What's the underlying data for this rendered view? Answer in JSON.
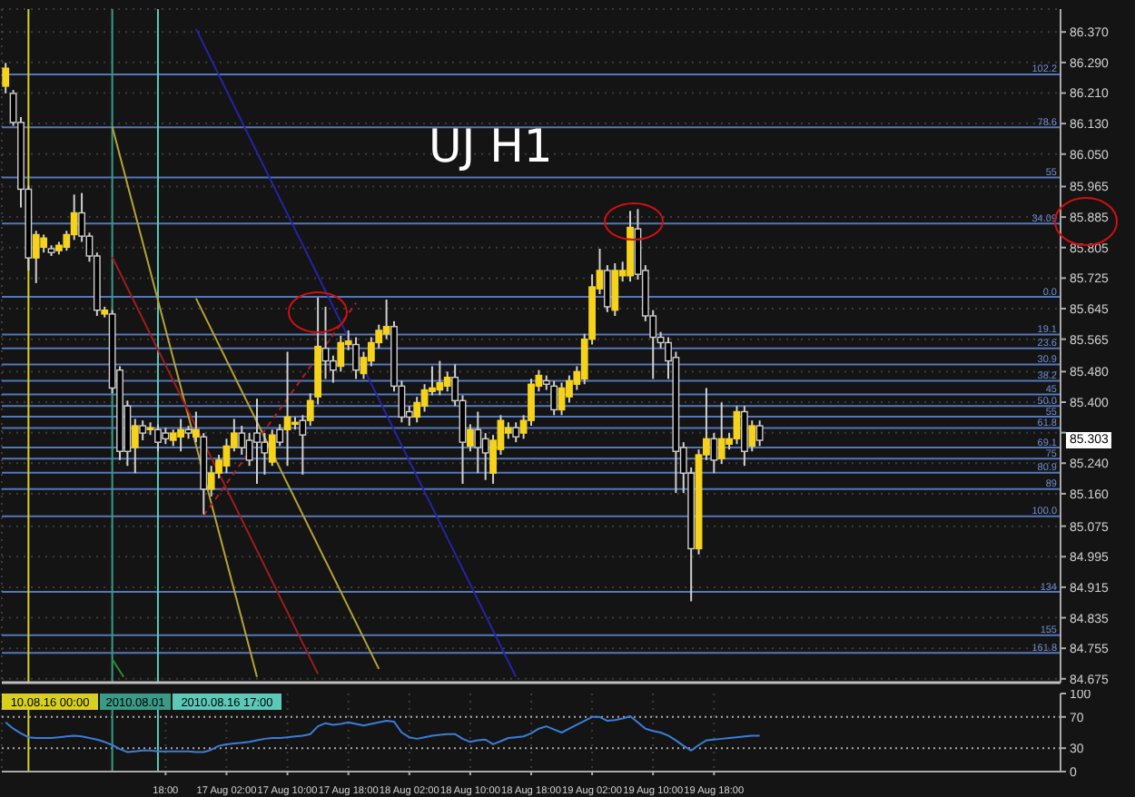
{
  "chart_data": [
    {
      "type": "candlestick",
      "title": "UJ H1",
      "x": [
        "2010-08-15T21:00",
        "2010-08-15T22:00",
        "2010-08-15T23:00",
        "2010-08-16T00:00",
        "2010-08-16T01:00",
        "2010-08-16T02:00",
        "2010-08-16T03:00",
        "2010-08-16T04:00",
        "2010-08-16T05:00",
        "2010-08-16T06:00",
        "2010-08-16T07:00",
        "2010-08-16T08:00",
        "2010-08-16T09:00",
        "2010-08-16T10:00",
        "2010-08-16T11:00",
        "2010-08-16T12:00",
        "2010-08-16T13:00",
        "2010-08-16T14:00",
        "2010-08-16T15:00",
        "2010-08-16T16:00",
        "2010-08-16T17:00",
        "2010-08-16T18:00",
        "2010-08-16T19:00",
        "2010-08-16T20:00",
        "2010-08-16T21:00",
        "2010-08-16T22:00",
        "2010-08-16T23:00",
        "2010-08-17T00:00",
        "2010-08-17T01:00",
        "2010-08-17T02:00",
        "2010-08-17T03:00",
        "2010-08-17T04:00",
        "2010-08-17T05:00",
        "2010-08-17T06:00",
        "2010-08-17T07:00",
        "2010-08-17T08:00",
        "2010-08-17T09:00",
        "2010-08-17T10:00",
        "2010-08-17T11:00",
        "2010-08-17T12:00",
        "2010-08-17T13:00",
        "2010-08-17T14:00",
        "2010-08-17T15:00",
        "2010-08-17T16:00",
        "2010-08-17T17:00",
        "2010-08-17T18:00",
        "2010-08-17T19:00",
        "2010-08-17T20:00",
        "2010-08-17T21:00",
        "2010-08-17T22:00",
        "2010-08-17T23:00",
        "2010-08-18T00:00",
        "2010-08-18T01:00",
        "2010-08-18T02:00",
        "2010-08-18T03:00",
        "2010-08-18T04:00",
        "2010-08-18T05:00",
        "2010-08-18T06:00",
        "2010-08-18T07:00",
        "2010-08-18T08:00",
        "2010-08-18T09:00",
        "2010-08-18T10:00",
        "2010-08-18T11:00",
        "2010-08-18T12:00",
        "2010-08-18T13:00",
        "2010-08-18T14:00",
        "2010-08-18T15:00",
        "2010-08-18T16:00",
        "2010-08-18T17:00",
        "2010-08-18T18:00",
        "2010-08-18T19:00",
        "2010-08-18T20:00",
        "2010-08-18T21:00",
        "2010-08-18T22:00",
        "2010-08-18T23:00",
        "2010-08-19T00:00",
        "2010-08-19T01:00",
        "2010-08-19T02:00",
        "2010-08-19T03:00",
        "2010-08-19T04:00",
        "2010-08-19T05:00",
        "2010-08-19T06:00",
        "2010-08-19T07:00",
        "2010-08-19T08:00",
        "2010-08-19T09:00",
        "2010-08-19T10:00",
        "2010-08-19T11:00",
        "2010-08-19T12:00",
        "2010-08-19T13:00",
        "2010-08-19T14:00",
        "2010-08-19T15:00",
        "2010-08-19T16:00",
        "2010-08-19T17:00",
        "2010-08-19T18:00",
        "2010-08-19T19:00",
        "2010-08-19T20:00",
        "2010-08-19T21:00",
        "2010-08-19T22:00",
        "2010-08-19T23:00",
        "2010-08-20T00:00"
      ],
      "ohlc": [
        [
          86.228,
          86.289,
          86.209,
          86.275
        ],
        [
          86.209,
          86.218,
          86.124,
          86.133
        ],
        [
          86.133,
          86.147,
          85.91,
          85.958
        ],
        [
          85.958,
          85.967,
          85.745,
          85.778
        ],
        [
          85.778,
          85.849,
          85.712,
          85.839
        ],
        [
          85.806,
          85.839,
          85.792,
          85.83
        ],
        [
          85.802,
          85.811,
          85.783,
          85.792
        ],
        [
          85.797,
          85.82,
          85.787,
          85.811
        ],
        [
          85.806,
          85.849,
          85.797,
          85.839
        ],
        [
          85.839,
          85.944,
          85.825,
          85.896
        ],
        [
          85.896,
          85.948,
          85.82,
          85.835
        ],
        [
          85.835,
          85.844,
          85.768,
          85.783
        ],
        [
          85.783,
          85.792,
          85.626,
          85.641
        ],
        [
          85.631,
          85.65,
          85.622,
          85.641
        ],
        [
          85.631,
          85.641,
          85.423,
          85.437
        ],
        [
          85.484,
          85.494,
          85.248,
          85.271
        ],
        [
          85.39,
          85.404,
          85.233,
          85.271
        ],
        [
          85.281,
          85.356,
          85.214,
          85.338
        ],
        [
          85.338,
          85.352,
          85.3,
          85.319
        ],
        [
          85.328,
          85.347,
          85.314,
          85.333
        ],
        [
          85.328,
          85.342,
          85.271,
          85.295
        ],
        [
          85.319,
          85.333,
          85.29,
          85.304
        ],
        [
          85.3,
          85.328,
          85.285,
          85.319
        ],
        [
          85.309,
          85.356,
          85.271,
          85.328
        ],
        [
          85.328,
          85.338,
          85.304,
          85.319
        ],
        [
          85.309,
          85.375,
          85.295,
          85.328
        ],
        [
          85.309,
          85.319,
          85.106,
          85.172
        ],
        [
          85.172,
          85.233,
          85.153,
          85.214
        ],
        [
          85.214,
          85.262,
          85.2,
          85.248
        ],
        [
          85.233,
          85.304,
          85.214,
          85.285
        ],
        [
          85.281,
          85.356,
          85.271,
          85.319
        ],
        [
          85.319,
          85.338,
          85.262,
          85.281
        ],
        [
          85.3,
          85.319,
          85.233,
          85.248
        ],
        [
          85.319,
          85.409,
          85.186,
          85.295
        ],
        [
          85.295,
          85.319,
          85.21,
          85.267
        ],
        [
          85.243,
          85.328,
          85.233,
          85.314
        ],
        [
          85.328,
          85.342,
          85.285,
          85.295
        ],
        [
          85.328,
          85.532,
          85.233,
          85.361
        ],
        [
          85.342,
          85.361,
          85.328,
          85.347
        ],
        [
          85.352,
          85.366,
          85.21,
          85.314
        ],
        [
          85.352,
          85.423,
          85.338,
          85.404
        ],
        [
          85.414,
          85.674,
          85.394,
          85.546
        ],
        [
          85.541,
          85.65,
          85.461,
          85.508
        ],
        [
          85.508,
          85.522,
          85.451,
          85.484
        ],
        [
          85.494,
          85.574,
          85.48,
          85.556
        ],
        [
          85.551,
          85.588,
          85.536,
          85.56
        ],
        [
          85.551,
          85.57,
          85.461,
          85.484
        ],
        [
          85.475,
          85.532,
          85.461,
          85.517
        ],
        [
          85.508,
          85.57,
          85.494,
          85.556
        ],
        [
          85.556,
          85.603,
          85.541,
          85.588
        ],
        [
          85.579,
          85.669,
          85.565,
          85.598
        ],
        [
          85.598,
          85.612,
          85.428,
          85.442
        ],
        [
          85.442,
          85.456,
          85.347,
          85.361
        ],
        [
          85.375,
          85.39,
          85.338,
          85.361
        ],
        [
          85.361,
          85.414,
          85.347,
          85.399
        ],
        [
          85.39,
          85.447,
          85.375,
          85.432
        ],
        [
          85.428,
          85.494,
          85.418,
          85.437
        ],
        [
          85.432,
          85.508,
          85.418,
          85.451
        ],
        [
          85.442,
          85.48,
          85.428,
          85.465
        ],
        [
          85.465,
          85.499,
          85.39,
          85.404
        ],
        [
          85.404,
          85.418,
          85.186,
          85.295
        ],
        [
          85.285,
          85.342,
          85.271,
          85.328
        ],
        [
          85.328,
          85.375,
          85.214,
          85.281
        ],
        [
          85.304,
          85.319,
          85.196,
          85.267
        ],
        [
          85.214,
          85.314,
          85.186,
          85.3
        ],
        [
          85.276,
          85.366,
          85.262,
          85.352
        ],
        [
          85.319,
          85.347,
          85.304,
          85.333
        ],
        [
          85.333,
          85.347,
          85.295,
          85.309
        ],
        [
          85.319,
          85.366,
          85.304,
          85.352
        ],
        [
          85.352,
          85.461,
          85.338,
          85.447
        ],
        [
          85.442,
          85.484,
          85.428,
          85.47
        ],
        [
          85.456,
          85.47,
          85.432,
          85.447
        ],
        [
          85.442,
          85.456,
          85.366,
          85.38
        ],
        [
          85.38,
          85.451,
          85.366,
          85.437
        ],
        [
          85.414,
          85.47,
          85.399,
          85.456
        ],
        [
          85.447,
          85.494,
          85.432,
          85.48
        ],
        [
          85.461,
          85.579,
          85.447,
          85.565
        ],
        [
          85.565,
          85.735,
          85.551,
          85.702
        ],
        [
          85.697,
          85.802,
          85.683,
          85.745
        ],
        [
          85.745,
          85.759,
          85.636,
          85.65
        ],
        [
          85.641,
          85.764,
          85.626,
          85.745
        ],
        [
          85.731,
          85.768,
          85.716,
          85.745
        ],
        [
          85.731,
          85.901,
          85.716,
          85.858
        ],
        [
          85.854,
          85.906,
          85.721,
          85.735
        ],
        [
          85.745,
          85.759,
          85.612,
          85.626
        ],
        [
          85.626,
          85.641,
          85.461,
          85.57
        ],
        [
          85.57,
          85.584,
          85.541,
          85.556
        ],
        [
          85.556,
          85.57,
          85.461,
          85.508
        ],
        [
          85.517,
          85.532,
          85.162,
          85.271
        ],
        [
          85.281,
          85.295,
          85.162,
          85.214
        ],
        [
          85.214,
          85.229,
          84.878,
          85.016
        ],
        [
          85.016,
          85.276,
          85.001,
          85.262
        ],
        [
          85.262,
          85.437,
          85.248,
          85.304
        ],
        [
          85.304,
          85.319,
          85.214,
          85.248
        ],
        [
          85.252,
          85.399,
          85.238,
          85.304
        ],
        [
          85.29,
          85.319,
          85.276,
          85.304
        ],
        [
          85.304,
          85.39,
          85.29,
          85.375
        ],
        [
          85.375,
          85.39,
          85.233,
          85.271
        ],
        [
          85.285,
          85.352,
          85.271,
          85.338
        ],
        [
          85.338,
          85.352,
          85.285,
          85.3
        ]
      ],
      "colors": [
        "#f5d31c",
        "#000000",
        "#000000",
        "#000000",
        "#f5d31c",
        "#f5d31c",
        "#000000",
        "#f5d31c",
        "#f5d31c",
        "#f5d31c",
        "#000000",
        "#000000",
        "#000000",
        "#f5d31c",
        "#000000",
        "#000000",
        "#000000",
        "#f5d31c",
        "#000000",
        "#f5d31c",
        "#000000",
        "#000000",
        "#f5d31c",
        "#f5d31c",
        "#000000",
        "#f5d31c",
        "#000000",
        "#f5d31c",
        "#f5d31c",
        "#f5d31c",
        "#f5d31c",
        "#000000",
        "#000000",
        "#000000",
        "#000000",
        "#f5d31c",
        "#000000",
        "#f5d31c",
        "#f5d31c",
        "#000000",
        "#f5d31c",
        "#f5d31c",
        "#000000",
        "#000000",
        "#f5d31c",
        "#f5d31c",
        "#000000",
        "#f5d31c",
        "#f5d31c",
        "#f5d31c",
        "#f5d31c",
        "#000000",
        "#000000",
        "#000000",
        "#f5d31c",
        "#f5d31c",
        "#f5d31c",
        "#f5d31c",
        "#f5d31c",
        "#000000",
        "#000000",
        "#f5d31c",
        "#000000",
        "#000000",
        "#f5d31c",
        "#f5d31c",
        "#f5d31c",
        "#000000",
        "#f5d31c",
        "#f5d31c",
        "#f5d31c",
        "#000000",
        "#000000",
        "#f5d31c",
        "#f5d31c",
        "#f5d31c",
        "#f5d31c",
        "#f5d31c",
        "#f5d31c",
        "#000000",
        "#f5d31c",
        "#f5d31c",
        "#f5d31c",
        "#000000",
        "#000000",
        "#000000",
        "#000000",
        "#000000",
        "#000000",
        "#000000",
        "#000000",
        "#f5d31c",
        "#f5d31c",
        "#000000",
        "#f5d31c",
        "#f5d31c",
        "#f5d31c",
        "#000000",
        "#f5d31c",
        "#000000"
      ],
      "series": [
        {
          "type": "line",
          "color": "#2424a8",
          "x": [
            "2010-08-16T22:00",
            "2010-08-18T16:00"
          ],
          "values": [
            86.378,
            84.68
          ]
        },
        {
          "type": "line",
          "color": "#b5a334",
          "x": [
            "2010-08-16T11:00",
            "2010-08-17T06:00"
          ],
          "values": [
            86.122,
            84.68
          ]
        },
        {
          "type": "line",
          "color": "#b5a334",
          "x": [
            "2010-08-16T22:00",
            "2010-08-17T22:00"
          ],
          "values": [
            85.672,
            84.701
          ]
        },
        {
          "type": "line",
          "color": "#a01c1c",
          "x": [
            "2010-08-16T11:00",
            "2010-08-17T14:00"
          ],
          "values": [
            85.78,
            84.688
          ]
        },
        {
          "type": "line",
          "color": "#b02020",
          "line_style": "dashed",
          "x": [
            "2010-08-16T23:00",
            "2010-08-17T19:00"
          ],
          "values": [
            85.103,
            85.66
          ]
        },
        {
          "type": "line",
          "color": "#2e8b2e",
          "x": [
            "2010-08-16T11:00",
            "2010-08-16T12:30"
          ],
          "values": [
            84.726,
            84.68
          ]
        }
      ],
      "xlim": [
        "2010-08-15T20:30",
        "2010-08-21T15:30"
      ],
      "xticks": [
        {
          "value": "2010-08-16T18:00",
          "label": null
        },
        {
          "value": "2010-08-17T02:00",
          "label": null
        },
        {
          "value": "2010-08-17T10:00",
          "label": null
        },
        {
          "value": "2010-08-17T18:00",
          "label": null
        },
        {
          "value": "2010-08-18T02:00",
          "label": null
        },
        {
          "value": "2010-08-18T10:00",
          "label": null
        },
        {
          "value": "2010-08-18T18:00",
          "label": null
        },
        {
          "value": "2010-08-19T02:00",
          "label": null
        },
        {
          "value": "2010-08-19T10:00",
          "label": null
        },
        {
          "value": "2010-08-19T18:00",
          "label": null
        }
      ],
      "ylim": [
        84.665,
        86.43
      ],
      "yticks": [
        84.675,
        84.755,
        84.835,
        84.915,
        84.995,
        85.075,
        {
          "value": 85.16,
          "label": "85.160"
        },
        {
          "value": 85.24,
          "label": "85.240"
        },
        {
          "value": 85.32,
          "label": null
        },
        {
          "value": 85.4,
          "label": "85.400"
        },
        {
          "value": 85.48,
          "label": "85.480"
        },
        85.565,
        85.645,
        85.725,
        85.805,
        85.885,
        85.965,
        {
          "value": 86.05,
          "label": "86.050"
        },
        {
          "value": 86.13,
          "label": "86.130"
        },
        {
          "value": 86.21,
          "label": "86.210"
        },
        {
          "value": 86.29,
          "label": "86.290"
        },
        {
          "value": 86.37,
          "label": "86.370"
        }
      ],
      "tick_labels": "y",
      "grid": true,
      "ref_lines": [
        {
          "axis": "y",
          "value": 86.259,
          "color": "#5576b8"
        },
        {
          "axis": "y",
          "value": 86.12,
          "color": "#5576b8"
        },
        {
          "axis": "y",
          "value": 85.989,
          "color": "#5576b8"
        },
        {
          "axis": "y",
          "value": 85.868,
          "color": "#5576b8"
        },
        {
          "axis": "y",
          "value": 85.676,
          "color": "#5576b8"
        },
        {
          "axis": "y",
          "value": 85.577,
          "color": "#5576b8"
        },
        {
          "axis": "y",
          "value": 85.541,
          "color": "#5576b8"
        },
        {
          "axis": "y",
          "value": 85.499,
          "color": "#5576b8"
        },
        {
          "axis": "y",
          "value": 85.456,
          "color": "#5576b8"
        },
        {
          "axis": "y",
          "value": 85.42,
          "color": "#5576b8"
        },
        {
          "axis": "y",
          "value": 85.39,
          "color": "#5576b8"
        },
        {
          "axis": "y",
          "value": 85.362,
          "color": "#5576b8"
        },
        {
          "axis": "y",
          "value": 85.332,
          "color": "#5576b8"
        },
        {
          "axis": "y",
          "value": 85.281,
          "color": "#5576b8"
        },
        {
          "axis": "y",
          "value": 85.252,
          "color": "#5576b8"
        },
        {
          "axis": "y",
          "value": 85.215,
          "color": "#5576b8"
        },
        {
          "axis": "y",
          "value": 85.172,
          "color": "#5576b8"
        },
        {
          "axis": "y",
          "value": 85.101,
          "color": "#5576b8"
        },
        {
          "axis": "y",
          "value": 84.903,
          "color": "#5576b8"
        },
        {
          "axis": "y",
          "value": 84.789,
          "color": "#5576b8"
        },
        {
          "axis": "y",
          "value": 84.743,
          "color": "#5576b8"
        },
        {
          "axis": "x",
          "value": "2010-08-16T00:00",
          "color": "#d8d020"
        },
        {
          "axis": "x",
          "value": "2010-08-16T11:00",
          "color": "#3a9a86"
        },
        {
          "axis": "x",
          "value": "2010-08-16T17:00",
          "color": "#5cc8b8"
        }
      ],
      "annotations": [
        "102.2",
        "78.6",
        "55",
        "34.09",
        "0.0",
        "19.1",
        "23.6",
        "30.9",
        "38.2",
        "45",
        "50.0",
        "55",
        "61.8",
        "69.1",
        "75",
        "80.9",
        "89",
        "100.0",
        "134",
        "155",
        "161.8",
        "85.303"
      ]
    },
    {
      "type": "line",
      "x": [
        "2010-08-15T21:00",
        "2010-08-15T22:00",
        "2010-08-15T23:00",
        "2010-08-16T00:00",
        "2010-08-16T01:00",
        "2010-08-16T02:00",
        "2010-08-16T03:00",
        "2010-08-16T04:00",
        "2010-08-16T05:00",
        "2010-08-16T06:00",
        "2010-08-16T07:00",
        "2010-08-16T08:00",
        "2010-08-16T09:00",
        "2010-08-16T10:00",
        "2010-08-16T11:00",
        "2010-08-16T12:00",
        "2010-08-16T13:00",
        "2010-08-16T14:00",
        "2010-08-16T15:00",
        "2010-08-16T16:00",
        "2010-08-16T17:00",
        "2010-08-16T18:00",
        "2010-08-16T19:00",
        "2010-08-16T20:00",
        "2010-08-16T21:00",
        "2010-08-16T22:00",
        "2010-08-16T23:00",
        "2010-08-17T00:00",
        "2010-08-17T01:00",
        "2010-08-17T02:00",
        "2010-08-17T03:00",
        "2010-08-17T04:00",
        "2010-08-17T05:00",
        "2010-08-17T06:00",
        "2010-08-17T07:00",
        "2010-08-17T08:00",
        "2010-08-17T09:00",
        "2010-08-17T10:00",
        "2010-08-17T11:00",
        "2010-08-17T12:00",
        "2010-08-17T13:00",
        "2010-08-17T14:00",
        "2010-08-17T15:00",
        "2010-08-17T16:00",
        "2010-08-17T17:00",
        "2010-08-17T18:00",
        "2010-08-17T19:00",
        "2010-08-17T20:00",
        "2010-08-17T21:00",
        "2010-08-17T22:00",
        "2010-08-17T23:00",
        "2010-08-18T00:00",
        "2010-08-18T01:00",
        "2010-08-18T02:00",
        "2010-08-18T03:00",
        "2010-08-18T04:00",
        "2010-08-18T05:00",
        "2010-08-18T06:00",
        "2010-08-18T07:00",
        "2010-08-18T08:00",
        "2010-08-18T09:00",
        "2010-08-18T10:00",
        "2010-08-18T11:00",
        "2010-08-18T12:00",
        "2010-08-18T13:00",
        "2010-08-18T14:00",
        "2010-08-18T15:00",
        "2010-08-18T16:00",
        "2010-08-18T17:00",
        "2010-08-18T18:00",
        "2010-08-18T19:00",
        "2010-08-18T20:00",
        "2010-08-18T21:00",
        "2010-08-18T22:00",
        "2010-08-18T23:00",
        "2010-08-19T00:00",
        "2010-08-19T01:00",
        "2010-08-19T02:00",
        "2010-08-19T03:00",
        "2010-08-19T04:00",
        "2010-08-19T05:00",
        "2010-08-19T06:00",
        "2010-08-19T07:00",
        "2010-08-19T08:00",
        "2010-08-19T09:00",
        "2010-08-19T10:00",
        "2010-08-19T11:00",
        "2010-08-19T12:00",
        "2010-08-19T13:00",
        "2010-08-19T14:00",
        "2010-08-19T15:00",
        "2010-08-19T16:00",
        "2010-08-19T17:00",
        "2010-08-19T18:00",
        "2010-08-19T19:00",
        "2010-08-19T20:00",
        "2010-08-19T21:00",
        "2010-08-19T22:00",
        "2010-08-19T23:00",
        "2010-08-20T00:00"
      ],
      "series": [
        {
          "color": "#3b7dd8",
          "values": [
            63,
            55,
            49,
            44,
            43,
            43,
            43,
            44,
            45,
            46,
            45,
            43,
            41,
            38,
            34,
            29,
            25,
            26,
            27,
            27,
            26,
            26,
            26,
            26,
            26,
            25,
            25,
            28,
            33,
            35,
            36,
            37,
            38,
            40,
            42,
            43,
            43,
            44,
            45,
            46,
            48,
            58,
            62,
            60,
            61,
            63,
            61,
            59,
            61,
            63,
            65,
            64,
            50,
            44,
            42,
            44,
            46,
            47,
            48,
            48,
            42,
            38,
            40,
            41,
            35,
            39,
            43,
            44,
            45,
            49,
            55,
            58,
            54,
            50,
            55,
            60,
            65,
            70,
            70,
            65,
            66,
            68,
            71,
            63,
            55,
            52,
            50,
            46,
            40,
            33,
            27,
            34,
            40,
            41,
            42,
            43,
            44,
            45,
            46,
            46
          ]
        }
      ],
      "xlim": [
        "2010-08-15T20:30",
        "2010-08-21T15:30"
      ],
      "xticks": [
        {
          "value": "2010-08-16T18:00",
          "label": "18:00"
        },
        {
          "value": "2010-08-17T02:00",
          "label": "17 Aug 02:00"
        },
        {
          "value": "2010-08-17T10:00",
          "label": "17 Aug 10:00"
        },
        {
          "value": "2010-08-17T18:00",
          "label": "17 Aug 18:00"
        },
        {
          "value": "2010-08-18T02:00",
          "label": "18 Aug 02:00"
        },
        {
          "value": "2010-08-18T10:00",
          "label": "18 Aug 10:00"
        },
        {
          "value": "2010-08-18T18:00",
          "label": "18 Aug 18:00"
        },
        {
          "value": "2010-08-19T02:00",
          "label": "19 Aug 02:00"
        },
        {
          "value": "2010-08-19T10:00",
          "label": "19 Aug 10:00"
        },
        {
          "value": "2010-08-19T18:00",
          "label": "19 Aug 18:00"
        }
      ],
      "ylim": [
        0,
        100
      ],
      "yticks": [
        0,
        30,
        70,
        100
      ],
      "grid": "x",
      "ref_lines": [
        {
          "axis": "y",
          "value": 70,
          "color": "#aaaaaa",
          "line_style": "dotted"
        },
        {
          "axis": "y",
          "value": 30,
          "color": "#aaaaaa",
          "line_style": "dotted"
        },
        {
          "axis": "x",
          "value": "2010-08-16T00:00",
          "label": "10.08.16 00:00",
          "color": "#d8d020"
        },
        {
          "axis": "x",
          "value": "2010-08-16T11:00",
          "label": "2010.08.01",
          "color": "#3a9a86"
        },
        {
          "axis": "x",
          "value": "2010-08-16T17:00",
          "label": "2010.08.16 17:00",
          "color": "#5cc8b8"
        }
      ]
    }
  ]
}
